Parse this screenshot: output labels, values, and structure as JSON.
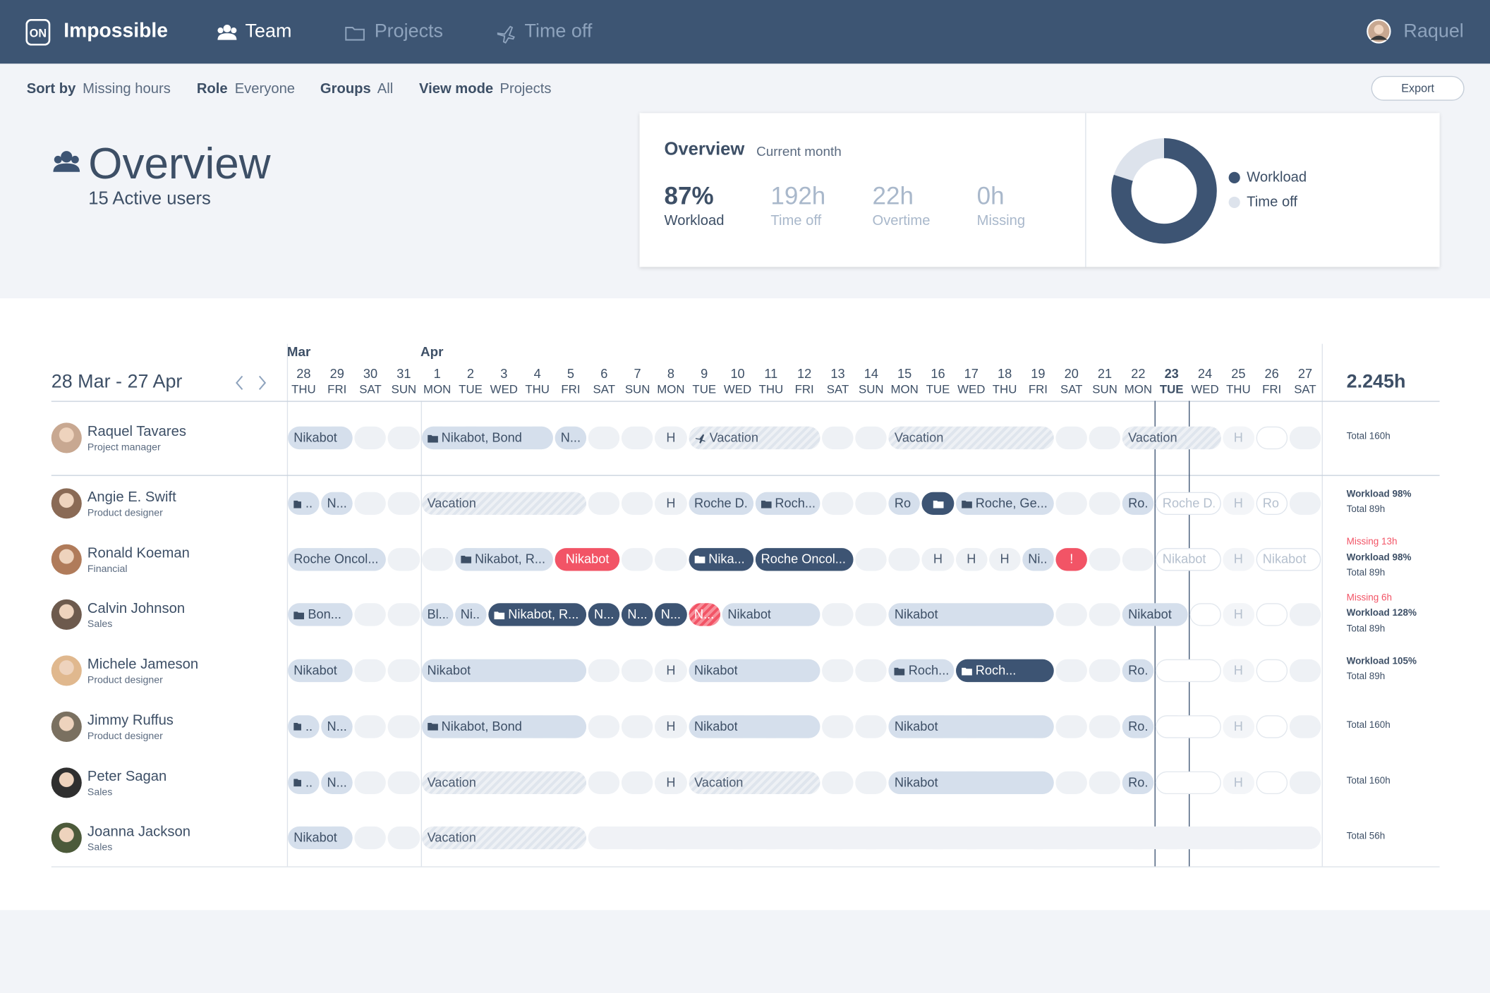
{
  "nav": {
    "brand": "Impossible",
    "items": [
      "Team",
      "Projects",
      "Time off"
    ],
    "user": "Raquel"
  },
  "filters": [
    {
      "label": "Sort by",
      "value": "Missing hours"
    },
    {
      "label": "Role",
      "value": "Everyone"
    },
    {
      "label": "Groups",
      "value": "All"
    },
    {
      "label": "View mode",
      "value": "Projects"
    }
  ],
  "export": "Export",
  "overview": {
    "title": "Overview",
    "subtitle": "15 Active users",
    "card_title": "Overview",
    "card_period": "Current month",
    "stats": [
      {
        "value": "87%",
        "label": "Workload"
      },
      {
        "value": "192h",
        "label": "Time off"
      },
      {
        "value": "22h",
        "label": "Overtime"
      },
      {
        "value": "0h",
        "label": "Missing"
      }
    ],
    "legend": [
      "Workload",
      "Time off"
    ]
  },
  "schedule": {
    "range": "28 Mar - 27 Apr",
    "total": "2.245h",
    "months": [
      {
        "label": "Mar",
        "day": 0
      },
      {
        "label": "Apr",
        "day": 4
      }
    ],
    "today": 26,
    "days": [
      {
        "d": "28",
        "w": "THU"
      },
      {
        "d": "29",
        "w": "FRI"
      },
      {
        "d": "30",
        "w": "SAT"
      },
      {
        "d": "31",
        "w": "SUN"
      },
      {
        "d": "1",
        "w": "MON"
      },
      {
        "d": "2",
        "w": "TUE"
      },
      {
        "d": "3",
        "w": "WED"
      },
      {
        "d": "4",
        "w": "THU"
      },
      {
        "d": "5",
        "w": "FRI"
      },
      {
        "d": "6",
        "w": "SAT"
      },
      {
        "d": "7",
        "w": "SUN"
      },
      {
        "d": "8",
        "w": "MON"
      },
      {
        "d": "9",
        "w": "TUE"
      },
      {
        "d": "10",
        "w": "WED"
      },
      {
        "d": "11",
        "w": "THU"
      },
      {
        "d": "12",
        "w": "FRI"
      },
      {
        "d": "13",
        "w": "SAT"
      },
      {
        "d": "14",
        "w": "SUN"
      },
      {
        "d": "15",
        "w": "MON"
      },
      {
        "d": "16",
        "w": "TUE"
      },
      {
        "d": "17",
        "w": "WED"
      },
      {
        "d": "18",
        "w": "THU"
      },
      {
        "d": "19",
        "w": "FRI"
      },
      {
        "d": "20",
        "w": "SAT"
      },
      {
        "d": "21",
        "w": "SUN"
      },
      {
        "d": "22",
        "w": "MON"
      },
      {
        "d": "23",
        "w": "TUE"
      },
      {
        "d": "24",
        "w": "WED"
      },
      {
        "d": "25",
        "w": "THU"
      },
      {
        "d": "26",
        "w": "FRI"
      },
      {
        "d": "27",
        "w": "SAT"
      }
    ],
    "rows": [
      {
        "name": "Raquel Tavares",
        "role": "Project manager",
        "summary": [
          {
            "text": "Total 160h"
          }
        ],
        "bookings": [
          {
            "label": "Nikabot",
            "start": 0,
            "span": 2,
            "kind": "project"
          },
          {
            "label": "Nikabot, Bond",
            "start": 4,
            "span": 4,
            "kind": "project",
            "icon": "folder"
          },
          {
            "label": "N...",
            "start": 8,
            "span": 1,
            "kind": "project"
          },
          {
            "label": "H",
            "start": 11,
            "span": 1,
            "kind": "holiday"
          },
          {
            "label": "Vacation",
            "start": 12,
            "span": 4,
            "kind": "vacation",
            "icon": "plane"
          },
          {
            "label": "Vacation",
            "start": 18,
            "span": 5,
            "kind": "vacation"
          },
          {
            "label": "Vacation",
            "start": 25,
            "span": 3,
            "kind": "vacation"
          },
          {
            "label": "H",
            "start": 28,
            "span": 1,
            "kind": "holiday-future"
          },
          {
            "start": 29,
            "span": 1,
            "kind": "open"
          }
        ]
      },
      {
        "name": "Angie E. Swift",
        "role": "Product designer",
        "summary": [
          {
            "text": "Workload 98%"
          },
          {
            "text": "Total 89h"
          }
        ],
        "bookings": [
          {
            "label": "...",
            "start": 0,
            "span": 1,
            "kind": "project",
            "icon": "folder"
          },
          {
            "label": "N...",
            "start": 1,
            "span": 1,
            "kind": "project"
          },
          {
            "label": "Vacation",
            "start": 4,
            "span": 5,
            "kind": "vacation"
          },
          {
            "label": "H",
            "start": 11,
            "span": 1,
            "kind": "holiday"
          },
          {
            "label": "Roche D...",
            "start": 12,
            "span": 2,
            "kind": "project"
          },
          {
            "label": "Roch...",
            "start": 14,
            "span": 2,
            "kind": "project",
            "icon": "folder"
          },
          {
            "label": "Ro",
            "start": 18,
            "span": 1,
            "kind": "project"
          },
          {
            "start": 19,
            "span": 1,
            "kind": "dark",
            "icon": "folder"
          },
          {
            "label": "Roche, Ge...",
            "start": 20,
            "span": 3,
            "kind": "project",
            "icon": "folder"
          },
          {
            "label": "Ro...",
            "start": 25,
            "span": 1,
            "kind": "project"
          },
          {
            "label": "Roche D...",
            "start": 26,
            "span": 2,
            "kind": "future"
          },
          {
            "label": "H",
            "start": 28,
            "span": 1,
            "kind": "holiday-future"
          },
          {
            "label": "Ro",
            "start": 29,
            "span": 1,
            "kind": "future"
          }
        ]
      },
      {
        "name": "Ronald Koeman",
        "role": "Financial",
        "summary": [
          {
            "text": "Missing 13h",
            "alert": true
          },
          {
            "text": "Workload 98%"
          },
          {
            "text": "Total 89h"
          }
        ],
        "bookings": [
          {
            "label": "Roche Oncol...",
            "start": 0,
            "span": 3,
            "kind": "project"
          },
          {
            "label": "Nikabot, R...",
            "start": 5,
            "span": 3,
            "kind": "project",
            "icon": "folder"
          },
          {
            "label": "Nikabot",
            "start": 8,
            "span": 2,
            "kind": "alert"
          },
          {
            "label": "Nika...",
            "start": 12,
            "span": 2,
            "kind": "dark",
            "icon": "folder"
          },
          {
            "label": "Roche Oncol...",
            "start": 14,
            "span": 3,
            "kind": "dark"
          },
          {
            "label": "H",
            "start": 19,
            "span": 1,
            "kind": "holiday"
          },
          {
            "label": "H",
            "start": 20,
            "span": 1,
            "kind": "holiday"
          },
          {
            "label": "H",
            "start": 21,
            "span": 1,
            "kind": "holiday"
          },
          {
            "label": "Ni...",
            "start": 22,
            "span": 1,
            "kind": "project"
          },
          {
            "label": "!",
            "start": 23,
            "span": 1,
            "kind": "alert"
          },
          {
            "label": "Nikabot",
            "start": 26,
            "span": 2,
            "kind": "future"
          },
          {
            "label": "H",
            "start": 28,
            "span": 1,
            "kind": "holiday-future"
          },
          {
            "label": "Nikabot",
            "start": 29,
            "span": 2,
            "kind": "future"
          }
        ]
      },
      {
        "name": "Calvin Johnson",
        "role": "Sales",
        "summary": [
          {
            "text": "Missing 6h",
            "alert": true
          },
          {
            "text": "Workload 128%"
          },
          {
            "text": "Total 89h"
          }
        ],
        "bookings": [
          {
            "label": "Bon...",
            "start": 0,
            "span": 2,
            "kind": "project",
            "icon": "folder"
          },
          {
            "label": "Bl...",
            "start": 4,
            "span": 1,
            "kind": "project"
          },
          {
            "label": "Ni...",
            "start": 5,
            "span": 1,
            "kind": "project"
          },
          {
            "label": "Nikabot, R...",
            "start": 6,
            "span": 3,
            "kind": "dark",
            "icon": "folder"
          },
          {
            "label": "N...",
            "start": 9,
            "span": 1,
            "kind": "dark"
          },
          {
            "label": "N...",
            "start": 10,
            "span": 1,
            "kind": "dark"
          },
          {
            "label": "N...",
            "start": 11,
            "span": 1,
            "kind": "dark"
          },
          {
            "label": "N...",
            "start": 12,
            "span": 1,
            "kind": "alert-hatched"
          },
          {
            "label": "Nikabot",
            "start": 13,
            "span": 3,
            "kind": "project"
          },
          {
            "label": "Nikabot",
            "start": 18,
            "span": 5,
            "kind": "project"
          },
          {
            "label": "Nikabot",
            "start": 25,
            "span": 2,
            "kind": "project"
          },
          {
            "start": 27,
            "span": 1,
            "kind": "open"
          },
          {
            "label": "H",
            "start": 28,
            "span": 1,
            "kind": "holiday-future"
          },
          {
            "start": 29,
            "span": 1,
            "kind": "open"
          }
        ]
      },
      {
        "name": "Michele Jameson",
        "role": "Product designer",
        "summary": [
          {
            "text": "Workload 105%"
          },
          {
            "text": "Total 89h"
          }
        ],
        "bookings": [
          {
            "label": "Nikabot",
            "start": 0,
            "span": 2,
            "kind": "project"
          },
          {
            "label": "Nikabot",
            "start": 4,
            "span": 5,
            "kind": "project"
          },
          {
            "label": "H",
            "start": 11,
            "span": 1,
            "kind": "holiday"
          },
          {
            "label": "Nikabot",
            "start": 12,
            "span": 4,
            "kind": "project"
          },
          {
            "label": "Roch...",
            "start": 18,
            "span": 2,
            "kind": "project",
            "icon": "folder"
          },
          {
            "label": "Roch...",
            "start": 20,
            "span": 3,
            "kind": "dark",
            "icon": "folder"
          },
          {
            "label": "Ro...",
            "start": 25,
            "span": 1,
            "kind": "project"
          },
          {
            "start": 26,
            "span": 2,
            "kind": "open"
          },
          {
            "label": "H",
            "start": 28,
            "span": 1,
            "kind": "holiday-future"
          },
          {
            "start": 29,
            "span": 1,
            "kind": "open"
          }
        ]
      },
      {
        "name": "Jimmy Ruffus",
        "role": "Product designer",
        "summary": [
          {
            "text": "Total 160h"
          }
        ],
        "bookings": [
          {
            "label": "...",
            "start": 0,
            "span": 1,
            "kind": "project",
            "icon": "folder"
          },
          {
            "label": "N...",
            "start": 1,
            "span": 1,
            "kind": "project"
          },
          {
            "label": "Nikabot, Bond",
            "start": 4,
            "span": 5,
            "kind": "project",
            "icon": "folder"
          },
          {
            "label": "H",
            "start": 11,
            "span": 1,
            "kind": "holiday"
          },
          {
            "label": "Nikabot",
            "start": 12,
            "span": 4,
            "kind": "project"
          },
          {
            "label": "Nikabot",
            "start": 18,
            "span": 5,
            "kind": "project"
          },
          {
            "label": "Ro...",
            "start": 25,
            "span": 1,
            "kind": "project"
          },
          {
            "start": 26,
            "span": 2,
            "kind": "open"
          },
          {
            "label": "H",
            "start": 28,
            "span": 1,
            "kind": "holiday-future"
          },
          {
            "start": 29,
            "span": 1,
            "kind": "open"
          }
        ]
      },
      {
        "name": "Peter Sagan",
        "role": "Sales",
        "summary": [
          {
            "text": "Total 160h"
          }
        ],
        "bookings": [
          {
            "label": "...",
            "start": 0,
            "span": 1,
            "kind": "project",
            "icon": "folder"
          },
          {
            "label": "N...",
            "start": 1,
            "span": 1,
            "kind": "project"
          },
          {
            "label": "Vacation",
            "start": 4,
            "span": 5,
            "kind": "vacation"
          },
          {
            "label": "H",
            "start": 11,
            "span": 1,
            "kind": "holiday"
          },
          {
            "label": "Vacation",
            "start": 12,
            "span": 4,
            "kind": "vacation"
          },
          {
            "label": "Nikabot",
            "start": 18,
            "span": 5,
            "kind": "project"
          },
          {
            "label": "Ro...",
            "start": 25,
            "span": 1,
            "kind": "project"
          },
          {
            "start": 26,
            "span": 2,
            "kind": "open"
          },
          {
            "label": "H",
            "start": 28,
            "span": 1,
            "kind": "holiday-future"
          },
          {
            "start": 29,
            "span": 1,
            "kind": "open"
          }
        ]
      },
      {
        "name": "Joanna Jackson",
        "role": "Sales",
        "summary": [
          {
            "text": "Total 56h"
          }
        ],
        "bookings": [
          {
            "label": "Nikabot",
            "start": 0,
            "span": 2,
            "kind": "project"
          },
          {
            "label": "Vacation",
            "start": 4,
            "span": 5,
            "kind": "vacation"
          },
          {
            "start": 9,
            "span": 22,
            "kind": "blank"
          }
        ]
      }
    ]
  }
}
